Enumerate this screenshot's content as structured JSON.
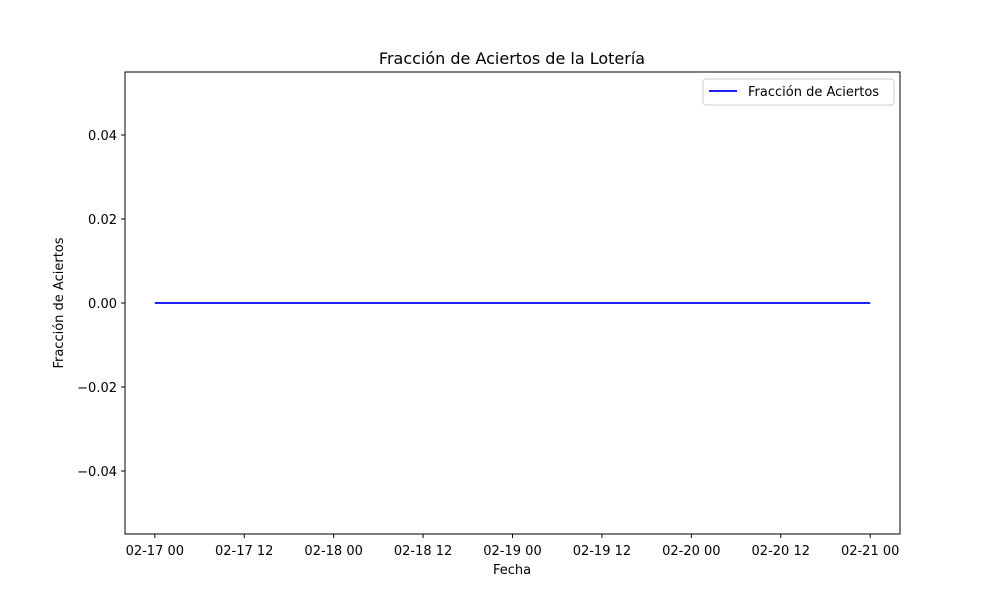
{
  "chart_data": {
    "type": "line",
    "title": "Fracción de Aciertos de la Lotería",
    "xlabel": "Fecha",
    "ylabel": "Fracción de Aciertos",
    "x_ticks": [
      "02-17 00",
      "02-17 12",
      "02-18 00",
      "02-18 12",
      "02-19 00",
      "02-19 12",
      "02-20 00",
      "02-20 12",
      "02-21 00"
    ],
    "y_ticks": [
      "0.04",
      "0.02",
      "0.00",
      "−0.02",
      "−0.04"
    ],
    "xlim": [
      "02-16 20",
      "02-21 04"
    ],
    "ylim": [
      -0.055,
      0.055
    ],
    "grid": false,
    "legend": "top-right",
    "series": [
      {
        "name": "Fracción de Aciertos",
        "color": "#0000ff",
        "x": [
          "02-17 00",
          "02-18 00",
          "02-19 00",
          "02-20 00",
          "02-21 00"
        ],
        "y": [
          0.0,
          0.0,
          0.0,
          0.0,
          0.0
        ]
      }
    ]
  }
}
